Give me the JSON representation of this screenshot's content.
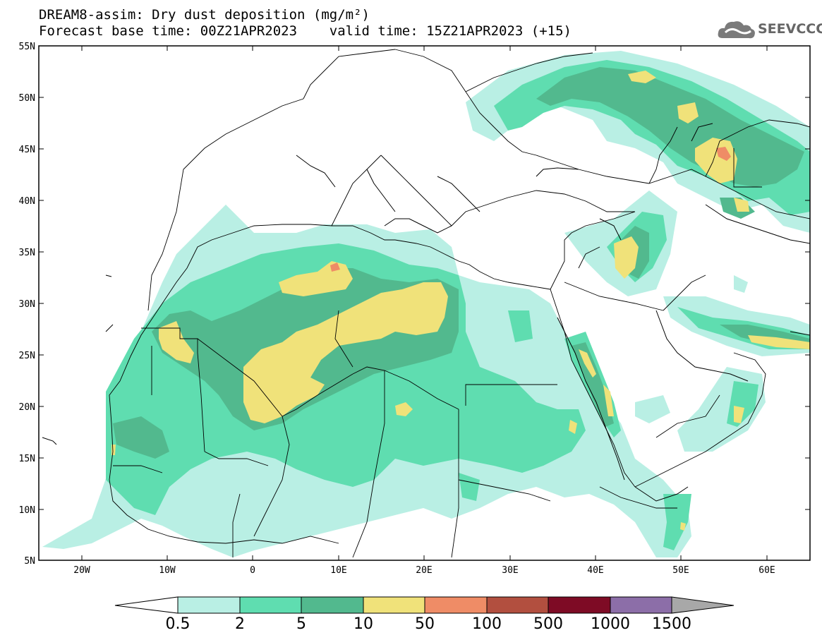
{
  "header": {
    "title_line1": "DREAM8-assim: Dry dust deposition (mg/m²)",
    "title_line2": "Forecast base time: 00Z21APR2023    valid time: 15Z21APR2023 (+15)"
  },
  "logo": {
    "text": "SEEVCCC"
  },
  "map": {
    "lon_range": [
      -25,
      65
    ],
    "lat_range": [
      5,
      55
    ],
    "lat_ticks": [
      "55N",
      "50N",
      "45N",
      "40N",
      "35N",
      "30N",
      "25N",
      "20N",
      "15N",
      "10N",
      "5N"
    ],
    "lon_ticks": [
      "20W",
      "10W",
      "0",
      "10E",
      "20E",
      "30E",
      "40E",
      "50E",
      "60E"
    ]
  },
  "colorbar": {
    "labels": [
      "0.5",
      "2",
      "5",
      "10",
      "50",
      "100",
      "500",
      "1000",
      "1500"
    ],
    "colors": [
      "#b9efe4",
      "#5fddb0",
      "#52b98e",
      "#f0e27a",
      "#ef8c66",
      "#b24f3f",
      "#7e0b25",
      "#8c6ea8",
      "#a8a8a8"
    ]
  }
}
